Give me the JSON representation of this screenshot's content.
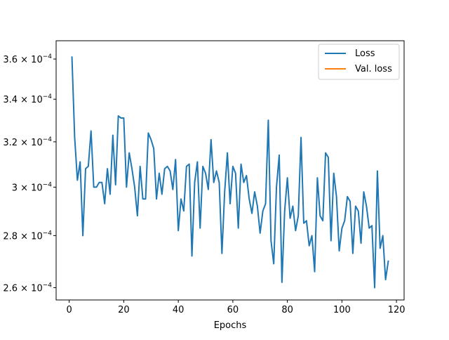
{
  "chart_data": {
    "type": "line",
    "title": "",
    "xlabel": "Epochs",
    "ylabel": "",
    "xlim": [
      -4.8,
      122.8
    ],
    "ylim": [
      0.0002555,
      0.0003695
    ],
    "yscale": "log",
    "grid": false,
    "legend_position": "top-right",
    "x_ticks": [
      {
        "value": 0,
        "label": "0"
      },
      {
        "value": 20,
        "label": "20"
      },
      {
        "value": 40,
        "label": "40"
      },
      {
        "value": 60,
        "label": "60"
      },
      {
        "value": 80,
        "label": "80"
      },
      {
        "value": 100,
        "label": "100"
      },
      {
        "value": 120,
        "label": "120"
      }
    ],
    "y_ticks": [
      {
        "value": 0.00026,
        "mantissa": "2.6",
        "base": "10",
        "exponent": "−4"
      },
      {
        "value": 0.00028,
        "mantissa": "2.8",
        "base": "10",
        "exponent": "−4"
      },
      {
        "value": 0.0003,
        "mantissa": "3",
        "base": "10",
        "exponent": "−4"
      },
      {
        "value": 0.00032,
        "mantissa": "3.2",
        "base": "10",
        "exponent": "−4"
      },
      {
        "value": 0.00034,
        "mantissa": "3.4",
        "base": "10",
        "exponent": "−4"
      },
      {
        "value": 0.00036,
        "mantissa": "3.6",
        "base": "10",
        "exponent": "−4"
      }
    ],
    "series": [
      {
        "name": "Loss",
        "color": "#1f77b4",
        "x": [
          1,
          2,
          3,
          4,
          5,
          6,
          7,
          8,
          9,
          10,
          11,
          12,
          13,
          14,
          15,
          16,
          17,
          18,
          19,
          20,
          21,
          22,
          23,
          24,
          25,
          26,
          27,
          28,
          29,
          30,
          31,
          32,
          33,
          34,
          35,
          36,
          37,
          38,
          39,
          40,
          41,
          42,
          43,
          44,
          45,
          46,
          47,
          48,
          49,
          50,
          51,
          52,
          53,
          54,
          55,
          56,
          57,
          58,
          59,
          60,
          61,
          62,
          63,
          64,
          65,
          66,
          67,
          68,
          69,
          70,
          71,
          72,
          73,
          74,
          75,
          76,
          77,
          78,
          79,
          80,
          81,
          82,
          83,
          84,
          85,
          86,
          87,
          88,
          89,
          90,
          91,
          92,
          93,
          94,
          95,
          96,
          97,
          98,
          99,
          100,
          101,
          102,
          103,
          104,
          105,
          106,
          107,
          108,
          109,
          110,
          111,
          112,
          113,
          114,
          115,
          116,
          117
        ],
        "values": [
          0.000361,
          0.000322,
          0.000303,
          0.000311,
          0.00028,
          0.000308,
          0.000309,
          0.000325,
          0.0003,
          0.0003,
          0.000302,
          0.000302,
          0.000293,
          0.000308,
          0.000297,
          0.000323,
          0.000301,
          0.000332,
          0.000331,
          0.000331,
          0.0003,
          0.000315,
          0.000308,
          0.0003,
          0.000288,
          0.000309,
          0.000295,
          0.000295,
          0.000324,
          0.000321,
          0.000317,
          0.000295,
          0.000306,
          0.000297,
          0.000308,
          0.000309,
          0.000307,
          0.000299,
          0.000312,
          0.000282,
          0.000295,
          0.00029,
          0.000309,
          0.00031,
          0.000272,
          0.000302,
          0.000311,
          0.000283,
          0.000309,
          0.000306,
          0.000299,
          0.000321,
          0.000302,
          0.000307,
          0.000302,
          0.000273,
          0.000298,
          0.000315,
          0.000293,
          0.000309,
          0.000306,
          0.000283,
          0.00031,
          0.000302,
          0.000305,
          0.000295,
          0.000289,
          0.000298,
          0.000292,
          0.000281,
          0.00029,
          0.000293,
          0.00033,
          0.000278,
          0.000269,
          0.0003,
          0.000314,
          0.000262,
          0.00029,
          0.000304,
          0.000287,
          0.000292,
          0.000282,
          0.000288,
          0.000322,
          0.000285,
          0.000286,
          0.000276,
          0.00028,
          0.000266,
          0.000304,
          0.000288,
          0.000286,
          0.000315,
          0.000313,
          0.000278,
          0.000306,
          0.000296,
          0.000274,
          0.000283,
          0.000286,
          0.000296,
          0.000294,
          0.000273,
          0.000292,
          0.00029,
          0.000277,
          0.000298,
          0.000292,
          0.000283,
          0.000284,
          0.00026,
          0.000307,
          0.000275,
          0.00028,
          0.000263,
          0.00027
        ]
      },
      {
        "name": "Val. loss",
        "color": "#ff7f0e",
        "x": [],
        "values": []
      }
    ]
  }
}
